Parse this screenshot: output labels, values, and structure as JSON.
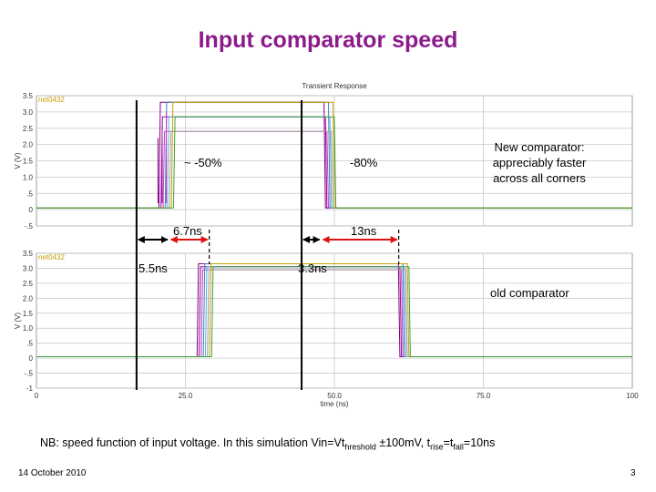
{
  "slide": {
    "title": "Input comparator speed",
    "date": "14 October 2010",
    "page_number": "3"
  },
  "note": {
    "prefix": "NB: speed function of input voltage. In this simulation Vin=Vt",
    "threshold_sub": "hreshold",
    "middle": " ±100mV, t",
    "rise_sub": "rise",
    "eq": "=t",
    "fall_sub": "fall",
    "suffix": "=10ns"
  },
  "annotations": {
    "minus50": "~ -50%",
    "minus80": "-80%",
    "new_comp": [
      "New comparator:",
      "appreciably faster",
      "across all corners"
    ],
    "old_comp": "old comparator",
    "t_new1": "6.7ns",
    "t_new2": "13ns",
    "t_old1": "5.5ns",
    "t_old2": "3.3ns"
  },
  "colors": {
    "title": "#8B1A8B",
    "arrow": "#E01010",
    "grid": "#c8c8c8",
    "trace_colors": [
      "#800080",
      "#a000a0",
      "#c040c0",
      "#4080c0",
      "#60b0e0",
      "#a0a0a0",
      "#c8a000",
      "#40a040"
    ]
  },
  "chart_data": [
    {
      "type": "line",
      "title": "Transient Response",
      "legend": "net0432",
      "ylabel": "V (V)",
      "xlim": [
        0,
        100
      ],
      "ylim": [
        -0.5,
        3.5
      ],
      "yticks": [
        "3.5",
        "3.0",
        "2.5",
        "2.0",
        "1.5",
        "1.0",
        ".5",
        "0",
        "-.5"
      ],
      "ytick_values": [
        3.5,
        3.0,
        2.5,
        2.0,
        1.5,
        1.0,
        0.5,
        0,
        -0.5
      ],
      "events_ns": [
        21.6,
        49.0
      ],
      "series_description": "Pulse outputs across corners, rising edges ~21-22 ns, falling ~48-49 ns"
    },
    {
      "type": "line",
      "legend": "net0432",
      "xlabel": "time (ns)",
      "ylabel": "V (V)",
      "xlim": [
        0,
        100
      ],
      "ylim": [
        -1,
        3.5
      ],
      "xticks": [
        "0",
        "25.0",
        "50.0",
        "75.0",
        "100"
      ],
      "xtick_values": [
        0,
        25,
        50,
        75,
        100
      ],
      "yticks": [
        "3.5",
        "3.0",
        "2.5",
        "2.0",
        "1.5",
        "1.0",
        ".5",
        "0",
        "-.5",
        "-1"
      ],
      "ytick_values": [
        3.5,
        3.0,
        2.5,
        2.0,
        1.5,
        1.0,
        0.5,
        0,
        -0.5,
        -1
      ],
      "events_ns": [
        28.0,
        61.5
      ],
      "series_description": "Pulse outputs across corners, rising edges ~27-28 ns, falling ~61-62 ns"
    }
  ],
  "markers": {
    "vlines_ns": [
      16.8,
      44.5
    ],
    "arrows": [
      {
        "label_key": "t_old1",
        "from_ns": 16.8,
        "to_ns": 22.3
      },
      {
        "label_key": "t_new1",
        "from_ns": 22.3,
        "to_ns": 29.0
      },
      {
        "label_key": "t_old2",
        "from_ns": 44.5,
        "to_ns": 47.8
      },
      {
        "label_key": "t_new2",
        "from_ns": 47.8,
        "to_ns": 60.8
      }
    ]
  }
}
